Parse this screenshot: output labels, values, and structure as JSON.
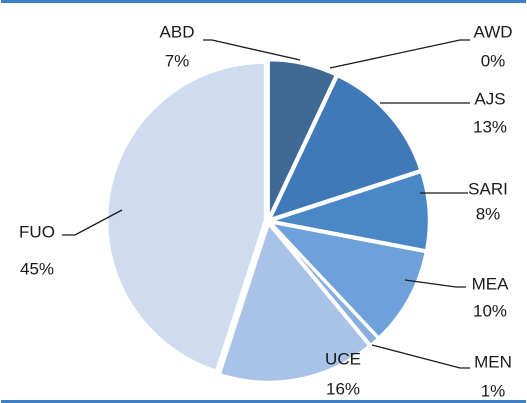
{
  "chart_data": {
    "type": "pie",
    "categories": [
      "ABD",
      "AWD",
      "AJS",
      "SARI",
      "MEA",
      "MEN",
      "UCE",
      "FUO"
    ],
    "values": [
      7,
      0,
      13,
      8,
      10,
      1,
      16,
      45
    ],
    "value_labels": [
      "7%",
      "0%",
      "13%",
      "8%",
      "10%",
      "1%",
      "16%",
      "45%"
    ],
    "colors": [
      "#3d6994",
      "#3b72ad",
      "#3f79b8",
      "#4a87c7",
      "#6ea0d9",
      "#88addf",
      "#a8c2e8",
      "#cfdcef"
    ]
  }
}
